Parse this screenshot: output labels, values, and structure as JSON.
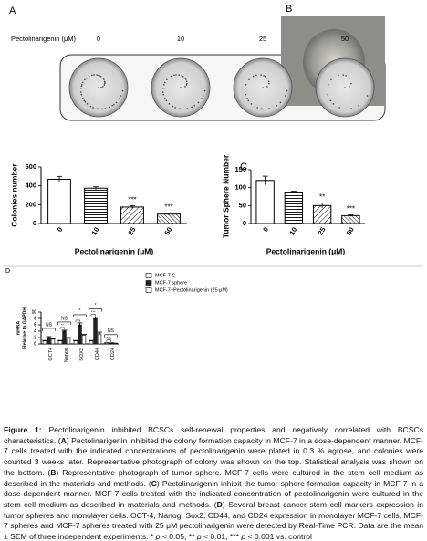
{
  "panel_labels": [
    "A",
    "B",
    "C",
    "D"
  ],
  "panel_a": {
    "header": "Pectolinarigenin (μM)",
    "doses": [
      "0",
      "10",
      "25",
      "50"
    ]
  },
  "chart_data": [
    {
      "type": "bar",
      "ylabel": "Colonies number",
      "xlabel": "Pectolinarigenin (μM)",
      "categories": [
        "0",
        "10",
        "25",
        "50"
      ],
      "values": [
        470,
        375,
        175,
        100
      ],
      "errors": [
        30,
        15,
        15,
        10
      ],
      "annotations": [
        null,
        null,
        "***",
        "***"
      ],
      "ylim": [
        0,
        600
      ],
      "yticks": [
        0,
        200,
        400,
        600
      ],
      "color": "#000000"
    },
    {
      "type": "bar",
      "ylabel": "Tumor Sphere Number",
      "xlabel": "Pectolinarigenin (μM)",
      "categories": [
        "0",
        "10",
        "25",
        "50"
      ],
      "values": [
        120,
        87,
        50,
        22
      ],
      "errors": [
        12,
        3,
        7,
        2
      ],
      "annotations": [
        null,
        null,
        "**",
        "***"
      ],
      "ylim": [
        0,
        150
      ],
      "yticks": [
        0,
        50,
        100,
        150
      ],
      "color": "#000000"
    },
    {
      "type": "bar",
      "ylabel": [
        "mRNA",
        "Relative to GAPDH"
      ],
      "categories": [
        "OCT4",
        "Nanog",
        "SOX2",
        "CD44",
        "CD24"
      ],
      "series": [
        {
          "name": "MCF-7 C",
          "color": "#ffffff",
          "values": [
            1,
            1,
            1,
            1,
            0.3
          ],
          "errors": [
            0.1,
            0.1,
            0.1,
            0.1,
            0.05
          ]
        },
        {
          "name": "MCF-7 sphere",
          "color": "#222222",
          "values": [
            2,
            4,
            6,
            8,
            0.3
          ],
          "errors": [
            0.3,
            0.3,
            0.6,
            0.4,
            0.05
          ]
        },
        {
          "name": "MCF-7+Pectolinarigenin (25 μM)",
          "color": "#ffffff",
          "values": [
            1.5,
            1.8,
            2.8,
            3.2,
            0.2
          ],
          "errors": [
            0.2,
            0.2,
            0.2,
            0.5,
            0.05
          ]
        }
      ],
      "annotations": [
        "NS",
        "NS",
        "*",
        "*",
        "NS"
      ],
      "inner_annotations": [
        null,
        "**",
        "**",
        "***",
        "NS"
      ],
      "ylim": [
        0,
        10
      ],
      "yticks": [
        0,
        2,
        4,
        6,
        8,
        10
      ]
    }
  ],
  "caption": [
    "Figure 1:",
    " Pectolinarigenin inhibited BCSCs self-renewal properties and negatively correlated with BCSCs characteristics. (",
    "A",
    ") Pectolinarigenin inhibited the colony formation capacity in MCF-7 in a dose-dependent manner. MCF-7 cells treated with the indicated concentrations of pectolinarigenin were plated in 0.3 % agrose, and colonies were counted 3 weeks later. Representative photograph of colony was shown on the top. Statistical analysis was shown on the bottom. (",
    "B",
    ") Representative photograph of tumor sphere. MCF-7 cells were cultured in the stem cell medium as described in the materials and methods.  (",
    "C",
    ") Pectolinarigenin inhibit the tumor sphere formation capacity in MCF-7 in a dose-dependent manner. MCF-7 cells treated with the indicated concentration of pectolinarigenin were cultured in the stem cell medium as described in materials and methods.  (",
    "D",
    ") Several breast cancer stem cell markers expression in tumor spheres and monolayer cells. OCT-4, Nanog, Sox2, CD44, and CD24 expression in monolayer MCF-7 cells, MCF-7 spheres and MCF-7 spheres treated with 25 μM pectolinarigenin were detected by Real-Time PCR. Data are the mean ± SEM of three independent experiments. ",
    "* ",
    "p",
    " < 0.05, ** ",
    "p",
    " < 0.01, *** ",
    "p",
    " < 0.001 vs. control"
  ]
}
